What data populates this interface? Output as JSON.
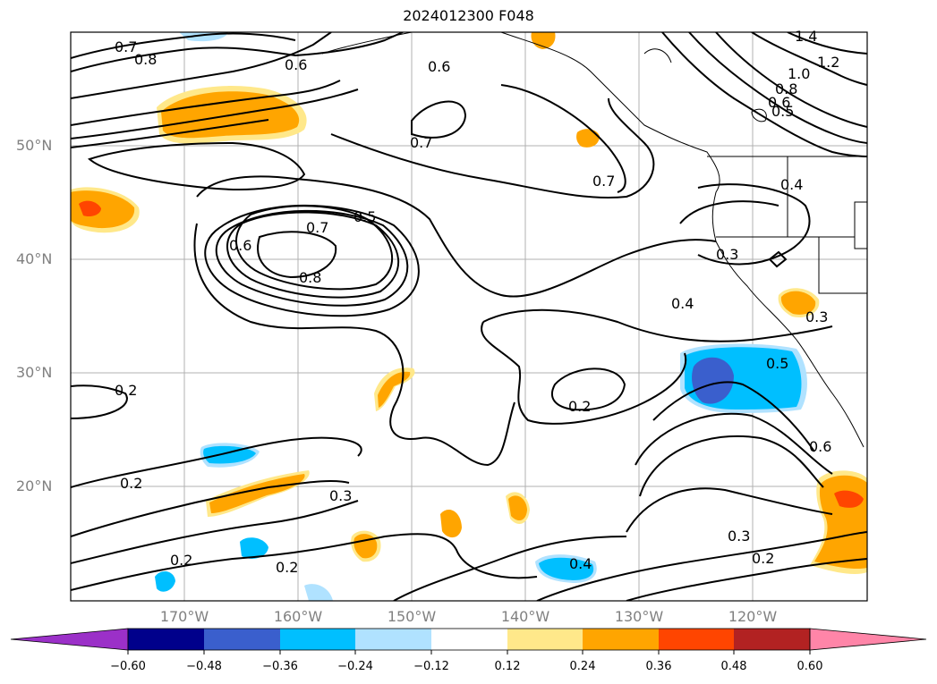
{
  "title": "2024012300 F048",
  "lat_labels": [
    "50°N",
    "40°N",
    "30°N",
    "20°N"
  ],
  "lon_labels": [
    "170°W",
    "160°W",
    "150°W",
    "140°W",
    "130°W",
    "120°W"
  ],
  "contour_labels": [
    "0.7",
    "0.8",
    "0.6",
    "0.6",
    "0.7",
    "0.7",
    "0.5",
    "0.7",
    "0.6",
    "0.8",
    "1.4",
    "1.2",
    "1.0",
    "0.8",
    "0.6",
    "0.5",
    "0.4",
    "0.3",
    "0.4",
    "0.2",
    "0.2",
    "0.5",
    "0.6",
    "0.2",
    "0.3",
    "0.2",
    "0.2",
    "0.3",
    "0.2",
    "0.4",
    "0.3"
  ],
  "colorbar": {
    "ticks": [
      "−0.60",
      "−0.48",
      "−0.36",
      "−0.24",
      "−0.12",
      "0.12",
      "0.24",
      "0.36",
      "0.48",
      "0.60"
    ],
    "colors": [
      "#9b30c8",
      "#00008b",
      "#3a5fcd",
      "#00bfff",
      "#b0e2ff",
      "#ffffff",
      "#ffe88a",
      "#ffa500",
      "#ff4500",
      "#b22222",
      "#ff85a8"
    ]
  },
  "map": {
    "lon_range": [
      -180,
      -110
    ],
    "lat_range": [
      10,
      60
    ],
    "grid": true
  }
}
